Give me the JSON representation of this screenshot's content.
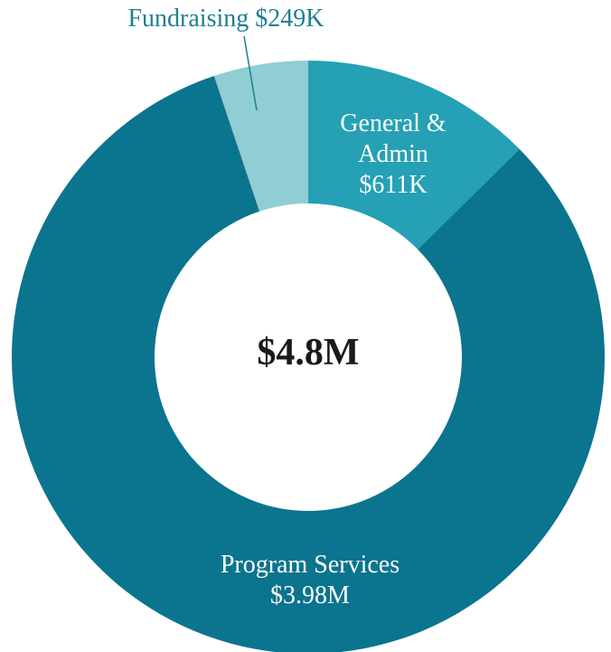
{
  "chart_data": {
    "type": "donut",
    "center_label": "$4.8M",
    "categories": [
      "General & Admin",
      "Program Services",
      "Fundraising"
    ],
    "values": [
      611000,
      3980000,
      249000
    ],
    "value_labels": [
      "$611K",
      "$3.98M",
      "$249K"
    ],
    "colors": [
      "#25a0b4",
      "#0b748e",
      "#90cdd4"
    ]
  }
}
